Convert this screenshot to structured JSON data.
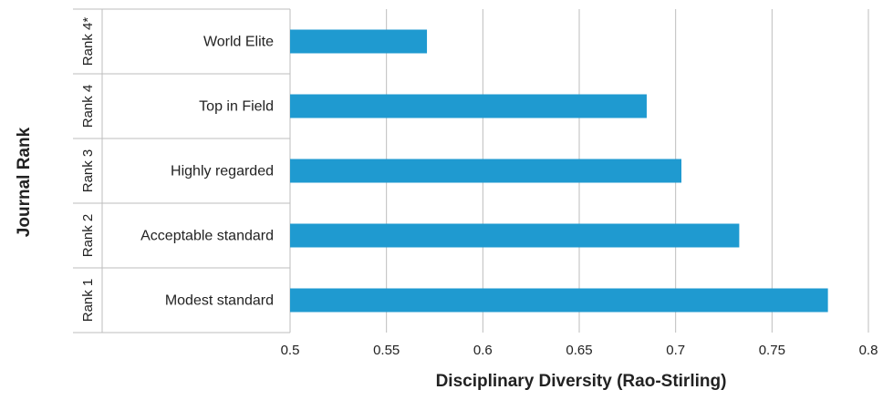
{
  "chart_data": {
    "type": "bar",
    "orientation": "horizontal",
    "ylabel": "Journal Rank",
    "xlabel": "Disciplinary Diversity (Rao-Stirling)",
    "xlim": [
      0.5,
      0.8
    ],
    "xticks": [
      "0.5",
      "0.55",
      "0.6",
      "0.65",
      "0.7",
      "0.75",
      "0.8"
    ],
    "grid": true,
    "color": "#1f9ad0",
    "categories": [
      {
        "rank": "Rank 4*",
        "label": "World Elite",
        "value": 0.571
      },
      {
        "rank": "Rank 4",
        "label": "Top in Field",
        "value": 0.685
      },
      {
        "rank": "Rank 3",
        "label": "Highly regarded",
        "value": 0.703
      },
      {
        "rank": "Rank 2",
        "label": "Acceptable standard",
        "value": 0.733
      },
      {
        "rank": "Rank 1",
        "label": "Modest standard",
        "value": 0.779
      }
    ]
  }
}
